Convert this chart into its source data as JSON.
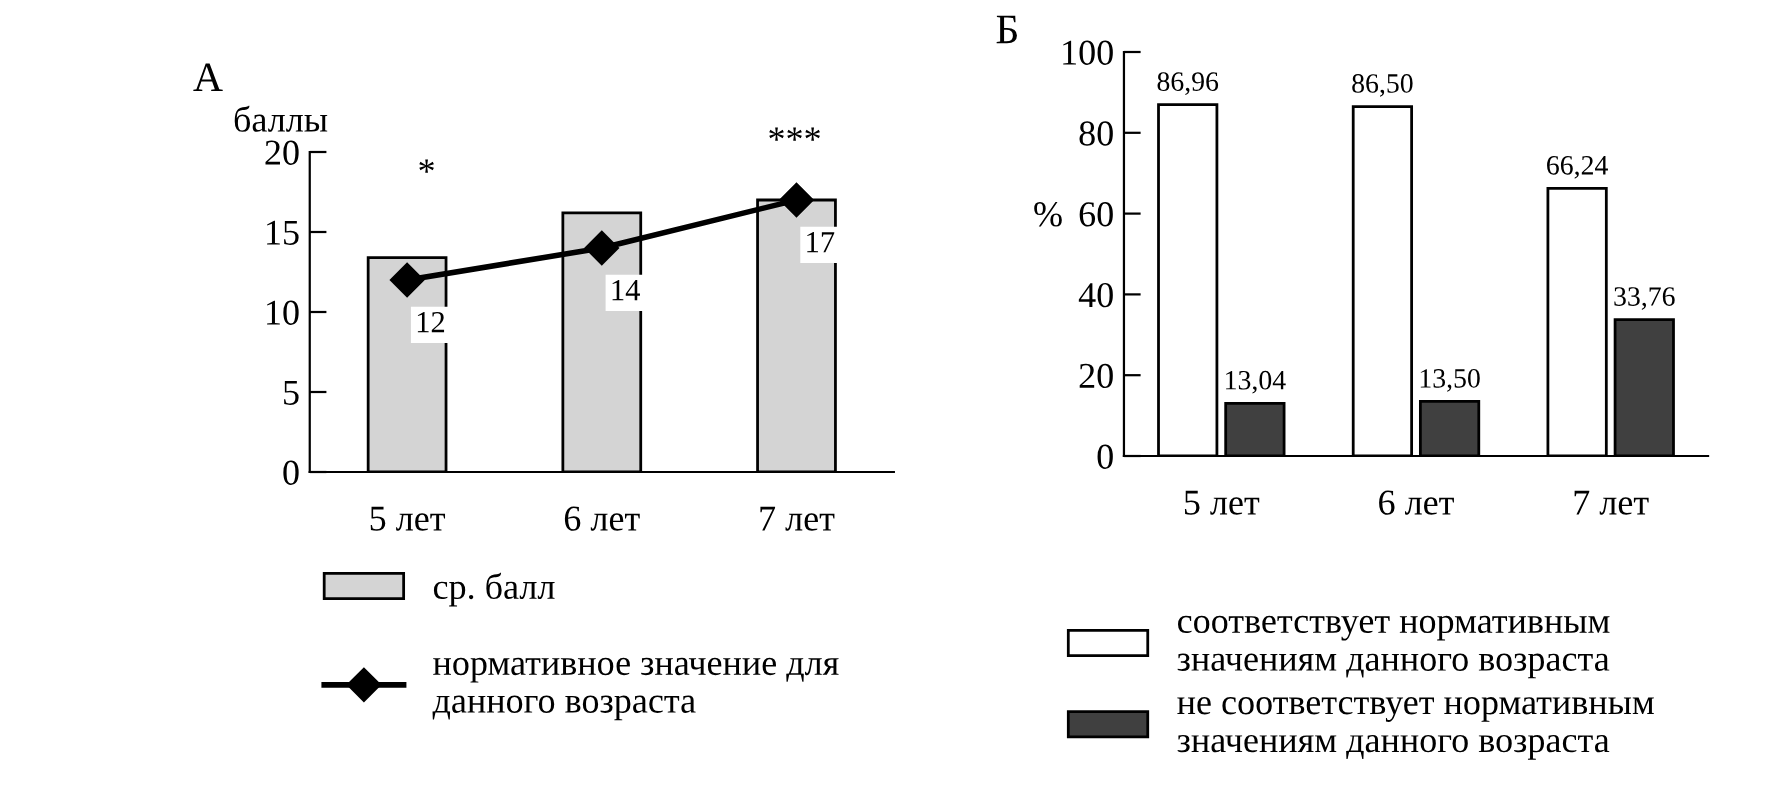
{
  "chart_data": [
    {
      "type": "bar",
      "title": "А",
      "ylabel": "баллы",
      "categories": [
        "5 лет",
        "6 лет",
        "7 лет"
      ],
      "ylim": [
        0,
        20
      ],
      "yticks": [
        0,
        5,
        10,
        15,
        20
      ],
      "grid": false,
      "legend": "bottom",
      "marker": "diamond",
      "series": [
        {
          "name": "ср. балл",
          "type": "bar",
          "color": "#d4d4d4",
          "values": [
            13.4,
            16.2,
            17.0
          ]
        },
        {
          "name": "нормативное значение для\nданного возраста",
          "type": "line",
          "color": "#000000",
          "values": [
            12,
            14,
            17
          ],
          "value_labels": [
            "12",
            "14",
            "17"
          ]
        }
      ],
      "annotations": [
        "*",
        "***"
      ]
    },
    {
      "type": "bar",
      "title": "Б",
      "ylabel": "%",
      "categories": [
        "5 лет",
        "6 лет",
        "7 лет"
      ],
      "ylim": [
        0,
        100
      ],
      "yticks": [
        0,
        20,
        40,
        60,
        80,
        100
      ],
      "grid": false,
      "legend": "bottom",
      "series": [
        {
          "name": "соответствует нормативным\nзначениям данного возраста",
          "color": "#ffffff",
          "values": [
            86.96,
            86.5,
            66.24
          ],
          "value_labels": [
            "86,96",
            "86,50",
            "66,24"
          ]
        },
        {
          "name": "не соответствует нормативным\nзначениям данного возраста",
          "color": "#404040",
          "values": [
            13.04,
            13.5,
            33.76
          ],
          "value_labels": [
            "13,04",
            "13,50",
            "33,76"
          ]
        }
      ]
    }
  ]
}
